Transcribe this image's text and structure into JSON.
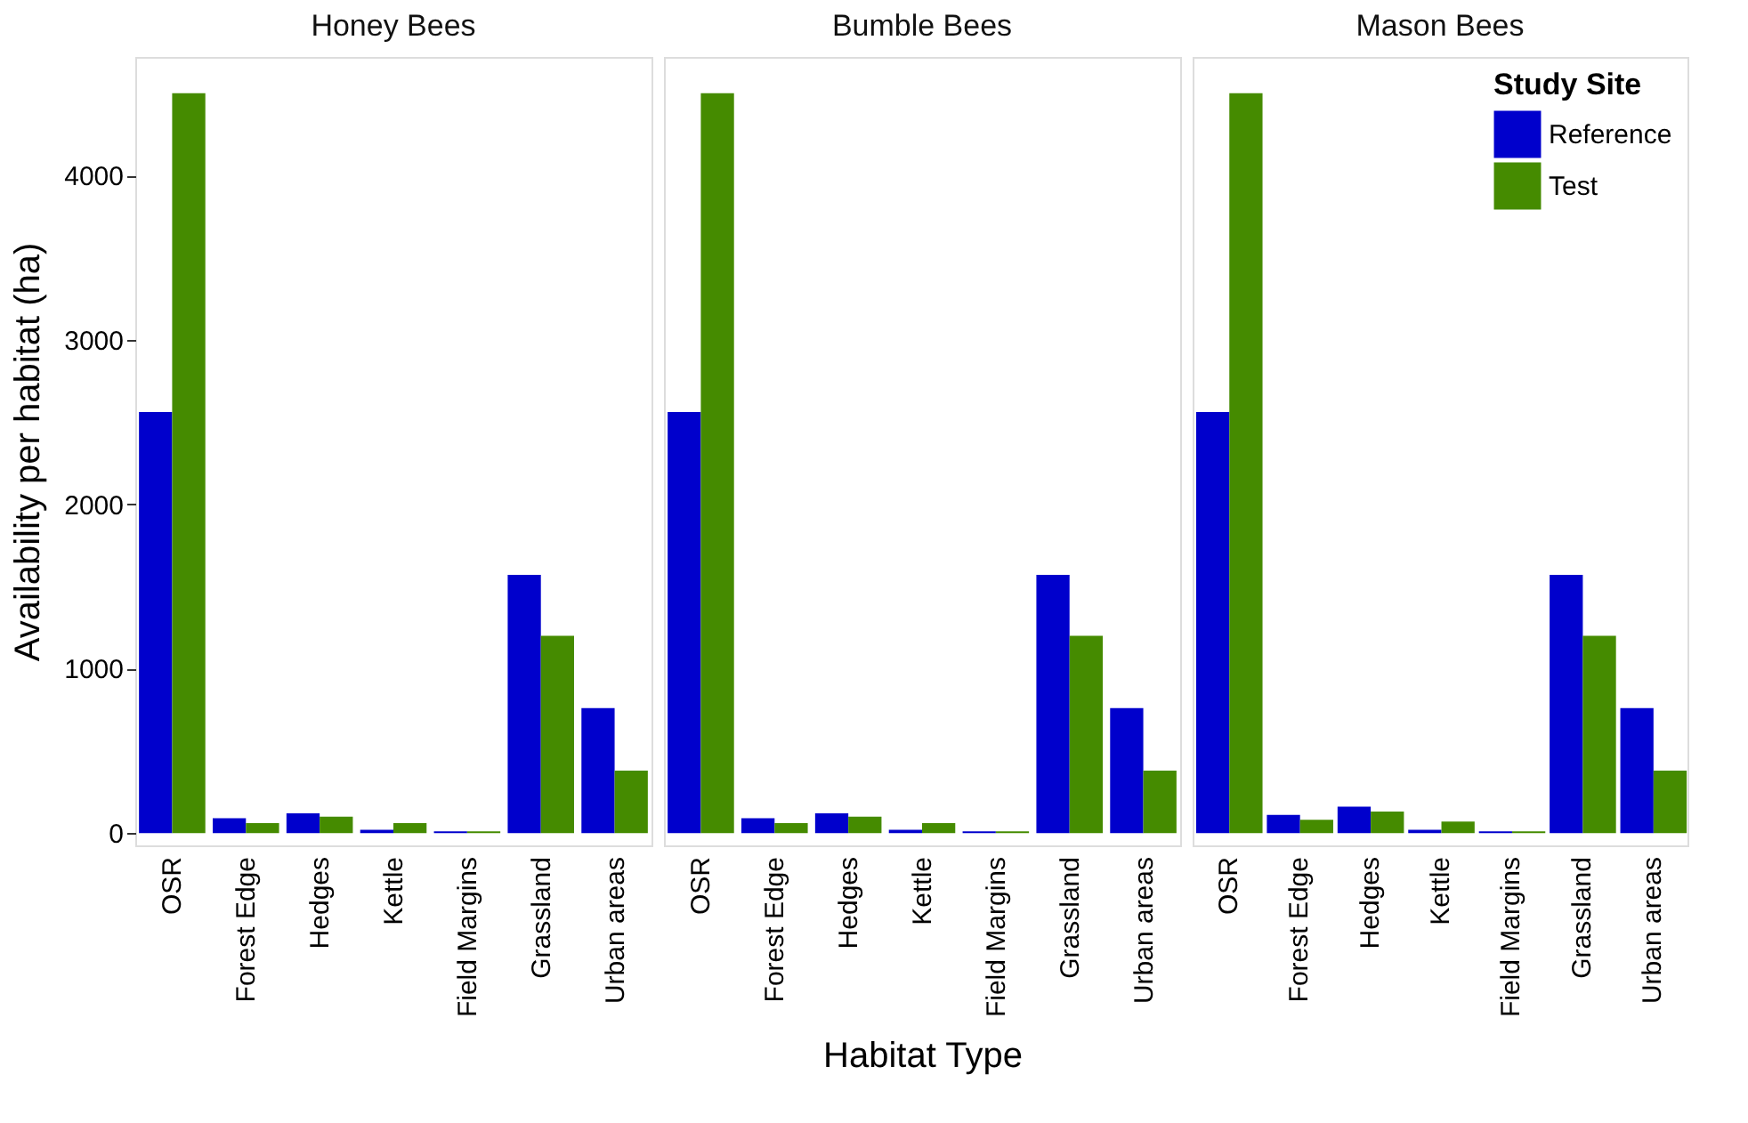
{
  "chart_data": [
    {
      "type": "bar",
      "title": "Honey Bees",
      "ylabel": "Availability per habitat (ha)",
      "categories": [
        "OSR",
        "Forest Edge",
        "Hedges",
        "Kettle",
        "Field Margins",
        "Grassland",
        "Urban areas"
      ],
      "series": [
        {
          "color": "#0000cc",
          "values": [
            2560,
            90,
            120,
            20,
            10,
            1570,
            760
          ]
        },
        {
          "color": "#458b00",
          "values": [
            4500,
            60,
            100,
            60,
            10,
            1200,
            380
          ]
        }
      ],
      "ylim": [
        -75,
        4720
      ],
      "yticks": [
        0,
        1000,
        2000,
        3000,
        4000
      ],
      "grid": false
    },
    {
      "type": "bar",
      "title": "Bumble Bees",
      "xlabel": "Habitat Type",
      "categories": [
        "OSR",
        "Forest Edge",
        "Hedges",
        "Kettle",
        "Field Margins",
        "Grassland",
        "Urban areas"
      ],
      "series": [
        {
          "color": "#0000cc",
          "values": [
            2560,
            90,
            120,
            20,
            10,
            1570,
            760
          ]
        },
        {
          "color": "#458b00",
          "values": [
            4500,
            60,
            100,
            60,
            10,
            1200,
            380
          ]
        }
      ],
      "ylim": [
        -75,
        4720
      ],
      "tick_labels": "x",
      "grid": false
    },
    {
      "type": "bar",
      "title": "Mason Bees",
      "legend_title": "Study Site",
      "categories": [
        "OSR",
        "Forest Edge",
        "Hedges",
        "Kettle",
        "Field Margins",
        "Grassland",
        "Urban areas"
      ],
      "series": [
        {
          "name": "Reference",
          "color": "#0000cc",
          "values": [
            2560,
            110,
            160,
            20,
            10,
            1570,
            760
          ]
        },
        {
          "name": "Test",
          "color": "#458b00",
          "values": [
            4500,
            80,
            130,
            70,
            10,
            1200,
            380
          ]
        }
      ],
      "ylim": [
        -75,
        4720
      ],
      "tick_labels": "x",
      "grid": false,
      "legend": "top right"
    }
  ]
}
